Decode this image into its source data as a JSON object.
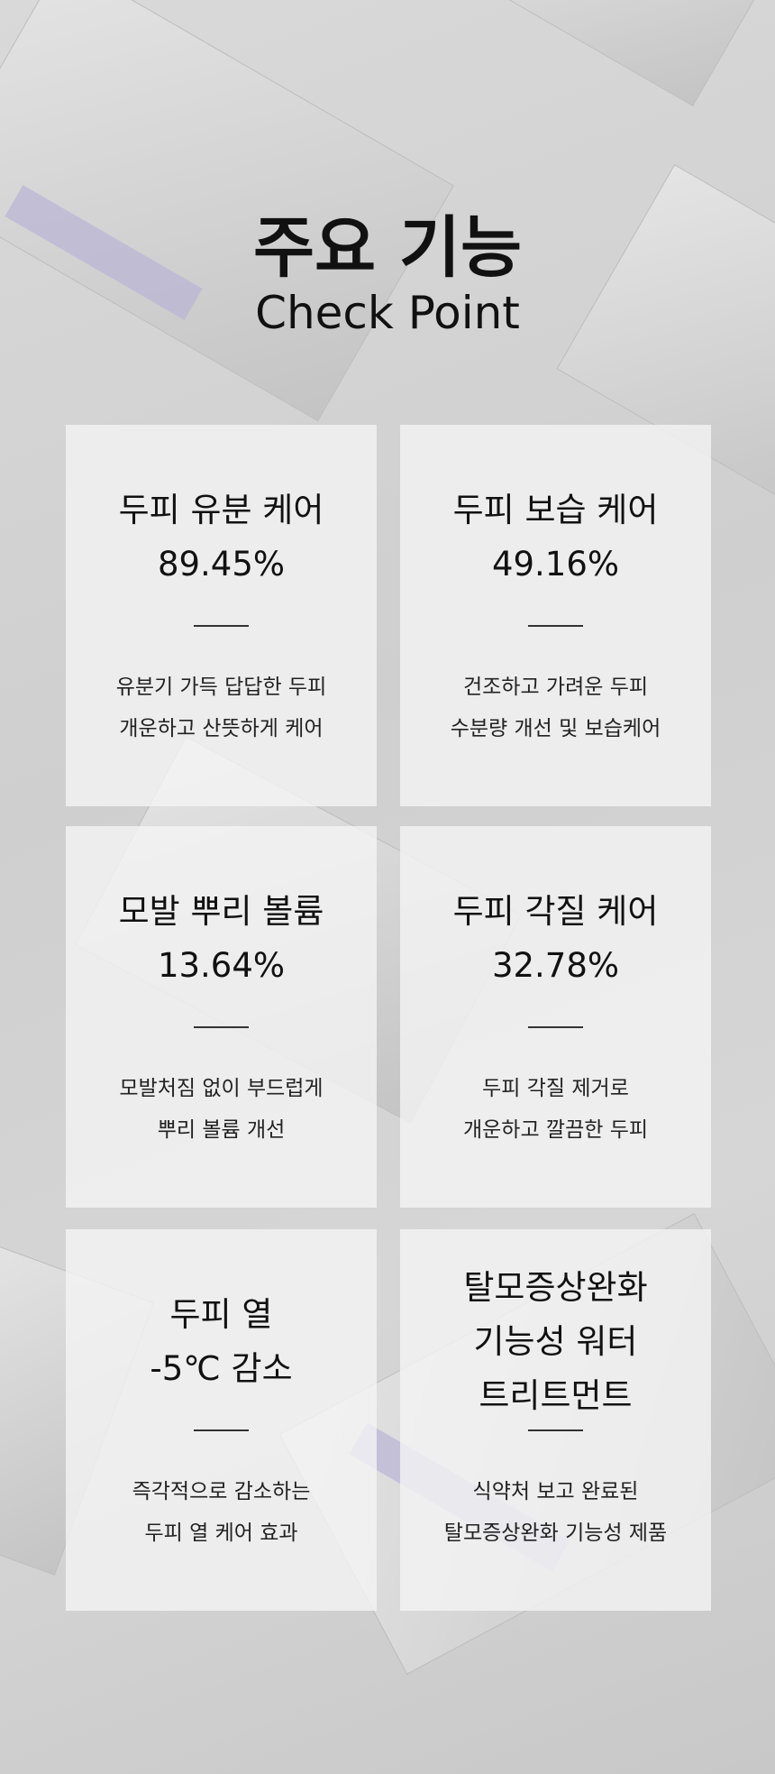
{
  "header": {
    "title": "주요 기능",
    "subtitle": "Check Point"
  },
  "cards": [
    {
      "heading": [
        "두피 유분 케어",
        "89.45%"
      ],
      "description": [
        "유분기 가득 답답한 두피",
        "개운하고 산뜻하게 케어"
      ]
    },
    {
      "heading": [
        "두피 보습 케어",
        "49.16%"
      ],
      "description": [
        "건조하고 가려운 두피",
        "수분량 개선 및 보습케어"
      ]
    },
    {
      "heading": [
        "모발 뿌리 볼륨",
        "13.64%"
      ],
      "description": [
        "모발처짐 없이 부드럽게",
        "뿌리 볼륨 개선"
      ]
    },
    {
      "heading": [
        "두피 각질 케어",
        "32.78%"
      ],
      "description": [
        "두피 각질 제거로",
        "개운하고 깔끔한 두피"
      ]
    },
    {
      "heading": [
        "두피 열",
        "-5℃ 감소"
      ],
      "description": [
        "즉각적으로 감소하는",
        "두피 열 케어 효과"
      ]
    },
    {
      "heading": [
        "탈모증상완화",
        "기능성 워터",
        "트리트먼트"
      ],
      "description": [
        "식약처 보고 완료된",
        "탈모증상완화 기능성 제품"
      ]
    }
  ]
}
